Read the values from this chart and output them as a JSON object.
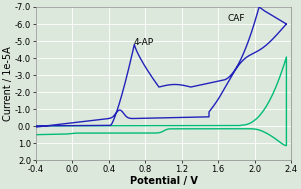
{
  "xlabel": "Potential / V",
  "ylabel": "Current / 1e-5A",
  "xlim": [
    -0.4,
    2.4
  ],
  "ylim_bottom": 2.0,
  "ylim_top": -7.0,
  "xticks": [
    -0.4,
    0.0,
    0.4,
    0.8,
    1.2,
    1.6,
    2.0,
    2.4
  ],
  "yticks": [
    -7.0,
    -6.0,
    -5.0,
    -4.0,
    -3.0,
    -2.0,
    -1.0,
    0.0,
    1.0,
    2.0
  ],
  "blue_color": "#2222bb",
  "green_color": "#00bb77",
  "annotation_4ap": "4-AP",
  "annotation_caf": "CAF",
  "ann_4ap_x": 0.78,
  "ann_4ap_y": -4.65,
  "ann_caf_x": 1.8,
  "ann_caf_y": -6.05,
  "background": "#dce8dc",
  "grid_color": "#ffffff",
  "label_fontsize": 7.0,
  "tick_fontsize": 6.0,
  "ann_fontsize": 6.5
}
